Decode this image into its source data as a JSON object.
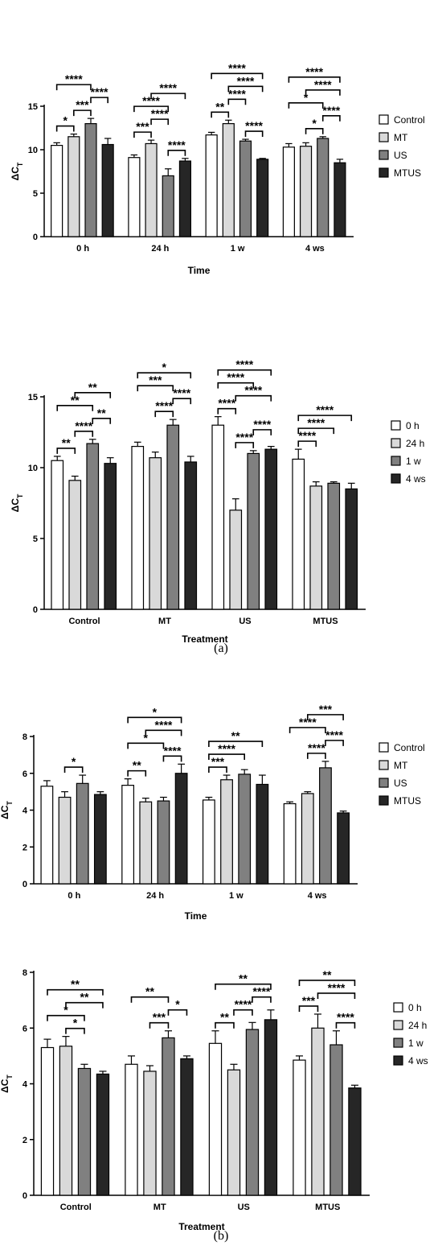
{
  "panel_labels": [
    "(a)",
    "(b)"
  ],
  "colors": {
    "s0": "#ffffff",
    "s1": "#d9d9d9",
    "s2": "#808080",
    "s3": "#262626"
  },
  "chart_data": [
    {
      "type": "bar",
      "categories": [
        "0 h",
        "24 h",
        "1 w",
        "4 ws"
      ],
      "xlabel": "Time",
      "ylabel": "ΔCT",
      "ylim": [
        0,
        15
      ],
      "yticks": [
        0,
        5,
        10,
        15
      ],
      "legend_position": "right",
      "series": [
        {
          "name": "Control",
          "values": [
            10.5,
            9.1,
            11.7,
            10.3
          ],
          "errors": [
            0.3,
            0.3,
            0.3,
            0.4
          ]
        },
        {
          "name": "MT",
          "values": [
            11.5,
            10.7,
            13.0,
            10.4
          ],
          "errors": [
            0.3,
            0.4,
            0.4,
            0.4
          ]
        },
        {
          "name": "US",
          "values": [
            13.0,
            7.0,
            11.0,
            11.3
          ],
          "errors": [
            0.6,
            0.8,
            0.2,
            0.2
          ]
        },
        {
          "name": "MTUS",
          "values": [
            10.6,
            8.7,
            8.9,
            8.5
          ],
          "errors": [
            0.7,
            0.3,
            0.1,
            0.4
          ]
        }
      ],
      "comparisons": [
        {
          "category": "0 h",
          "from": 0,
          "to": 1,
          "label": "*"
        },
        {
          "category": "0 h",
          "from": 0,
          "to": 2,
          "label": "****"
        },
        {
          "category": "0 h",
          "from": 1,
          "to": 2,
          "label": "***"
        },
        {
          "category": "0 h",
          "from": 2,
          "to": 3,
          "label": "****"
        },
        {
          "category": "24 h",
          "from": 0,
          "to": 1,
          "label": "***"
        },
        {
          "category": "24 h",
          "from": 0,
          "to": 2,
          "label": "****"
        },
        {
          "category": "24 h",
          "from": 1,
          "to": 2,
          "label": "****"
        },
        {
          "category": "24 h",
          "from": 1,
          "to": 3,
          "label": "****"
        },
        {
          "category": "24 h",
          "from": 2,
          "to": 3,
          "label": "****"
        },
        {
          "category": "1 w",
          "from": 0,
          "to": 1,
          "label": "**"
        },
        {
          "category": "1 w",
          "from": 0,
          "to": 3,
          "label": "****"
        },
        {
          "category": "1 w",
          "from": 1,
          "to": 2,
          "label": "****"
        },
        {
          "category": "1 w",
          "from": 1,
          "to": 3,
          "label": "****"
        },
        {
          "category": "1 w",
          "from": 2,
          "to": 3,
          "label": "****"
        },
        {
          "category": "4 ws",
          "from": 0,
          "to": 2,
          "label": "*"
        },
        {
          "category": "4 ws",
          "from": 0,
          "to": 3,
          "label": "****"
        },
        {
          "category": "4 ws",
          "from": 1,
          "to": 2,
          "label": "*"
        },
        {
          "category": "4 ws",
          "from": 1,
          "to": 3,
          "label": "****"
        },
        {
          "category": "4 ws",
          "from": 2,
          "to": 3,
          "label": "****"
        }
      ]
    },
    {
      "type": "bar",
      "categories": [
        "Control",
        "MT",
        "US",
        "MTUS"
      ],
      "xlabel": "Treatment",
      "ylabel": "ΔCT",
      "ylim": [
        0,
        15
      ],
      "yticks": [
        0,
        5,
        10,
        15
      ],
      "legend_position": "right",
      "series": [
        {
          "name": "0 h",
          "values": [
            10.5,
            11.5,
            13.0,
            10.6
          ],
          "errors": [
            0.3,
            0.3,
            0.6,
            0.7
          ]
        },
        {
          "name": "24 h",
          "values": [
            9.1,
            10.7,
            7.0,
            8.7
          ],
          "errors": [
            0.3,
            0.4,
            0.8,
            0.3
          ]
        },
        {
          "name": "1 w",
          "values": [
            11.7,
            13.0,
            11.0,
            8.9
          ],
          "errors": [
            0.3,
            0.4,
            0.2,
            0.1
          ]
        },
        {
          "name": "4 ws",
          "values": [
            10.3,
            10.4,
            11.3,
            8.5
          ],
          "errors": [
            0.4,
            0.4,
            0.2,
            0.4
          ]
        }
      ],
      "comparisons": [
        {
          "category": "Control",
          "from": 0,
          "to": 1,
          "label": "**"
        },
        {
          "category": "Control",
          "from": 0,
          "to": 2,
          "label": "**"
        },
        {
          "category": "Control",
          "from": 1,
          "to": 2,
          "label": "****"
        },
        {
          "category": "Control",
          "from": 1,
          "to": 3,
          "label": "**"
        },
        {
          "category": "Control",
          "from": 2,
          "to": 3,
          "label": "**"
        },
        {
          "category": "MT",
          "from": 0,
          "to": 2,
          "label": "***"
        },
        {
          "category": "MT",
          "from": 0,
          "to": 3,
          "label": "*"
        },
        {
          "category": "MT",
          "from": 1,
          "to": 2,
          "label": "****"
        },
        {
          "category": "MT",
          "from": 2,
          "to": 3,
          "label": "****"
        },
        {
          "category": "US",
          "from": 0,
          "to": 1,
          "label": "****"
        },
        {
          "category": "US",
          "from": 0,
          "to": 2,
          "label": "****"
        },
        {
          "category": "US",
          "from": 0,
          "to": 3,
          "label": "****"
        },
        {
          "category": "US",
          "from": 1,
          "to": 2,
          "label": "****"
        },
        {
          "category": "US",
          "from": 1,
          "to": 3,
          "label": "****"
        },
        {
          "category": "US",
          "from": 2,
          "to": 3,
          "label": "****"
        },
        {
          "category": "MTUS",
          "from": 0,
          "to": 1,
          "label": "****"
        },
        {
          "category": "MTUS",
          "from": 0,
          "to": 2,
          "label": "****"
        },
        {
          "category": "MTUS",
          "from": 0,
          "to": 3,
          "label": "****"
        }
      ]
    },
    {
      "type": "bar",
      "categories": [
        "0 h",
        "24 h",
        "1 w",
        "4 ws"
      ],
      "xlabel": "Time",
      "ylabel": "ΔCT",
      "ylim": [
        0,
        8
      ],
      "yticks": [
        0,
        2,
        4,
        6,
        8
      ],
      "legend_position": "right",
      "series": [
        {
          "name": "Control",
          "values": [
            5.3,
            5.35,
            4.55,
            4.35
          ],
          "errors": [
            0.3,
            0.35,
            0.15,
            0.1
          ]
        },
        {
          "name": "MT",
          "values": [
            4.7,
            4.45,
            5.65,
            4.9
          ],
          "errors": [
            0.3,
            0.2,
            0.25,
            0.1
          ]
        },
        {
          "name": "US",
          "values": [
            5.45,
            4.5,
            5.95,
            6.3
          ],
          "errors": [
            0.45,
            0.2,
            0.25,
            0.35
          ]
        },
        {
          "name": "MTUS",
          "values": [
            4.85,
            6.0,
            5.4,
            3.85
          ],
          "errors": [
            0.15,
            0.5,
            0.5,
            0.1
          ]
        }
      ],
      "comparisons": [
        {
          "category": "0 h",
          "from": 1,
          "to": 2,
          "label": "*"
        },
        {
          "category": "24 h",
          "from": 0,
          "to": 1,
          "label": "**"
        },
        {
          "category": "24 h",
          "from": 0,
          "to": 2,
          "label": "*"
        },
        {
          "category": "24 h",
          "from": 0,
          "to": 3,
          "label": "*"
        },
        {
          "category": "24 h",
          "from": 1,
          "to": 3,
          "label": "****"
        },
        {
          "category": "24 h",
          "from": 2,
          "to": 3,
          "label": "****"
        },
        {
          "category": "1 w",
          "from": 0,
          "to": 1,
          "label": "***"
        },
        {
          "category": "1 w",
          "from": 0,
          "to": 2,
          "label": "****"
        },
        {
          "category": "1 w",
          "from": 0,
          "to": 3,
          "label": "**"
        },
        {
          "category": "4 ws",
          "from": 0,
          "to": 2,
          "label": "****"
        },
        {
          "category": "4 ws",
          "from": 1,
          "to": 2,
          "label": "****"
        },
        {
          "category": "4 ws",
          "from": 1,
          "to": 3,
          "label": "***"
        },
        {
          "category": "4 ws",
          "from": 2,
          "to": 3,
          "label": "****"
        }
      ]
    },
    {
      "type": "bar",
      "categories": [
        "Control",
        "MT",
        "US",
        "MTUS"
      ],
      "xlabel": "Treatment",
      "ylabel": "ΔCT",
      "ylim": [
        0,
        8
      ],
      "yticks": [
        0,
        2,
        4,
        6,
        8
      ],
      "legend_position": "right",
      "series": [
        {
          "name": "0 h",
          "values": [
            5.3,
            4.7,
            5.45,
            4.85
          ],
          "errors": [
            0.3,
            0.3,
            0.45,
            0.15
          ]
        },
        {
          "name": "24 h",
          "values": [
            5.35,
            4.45,
            4.5,
            6.0
          ],
          "errors": [
            0.35,
            0.2,
            0.2,
            0.5
          ]
        },
        {
          "name": "1 w",
          "values": [
            4.55,
            5.65,
            5.95,
            5.4
          ],
          "errors": [
            0.15,
            0.25,
            0.25,
            0.5
          ]
        },
        {
          "name": "4 ws",
          "values": [
            4.35,
            4.9,
            6.3,
            3.85
          ],
          "errors": [
            0.1,
            0.1,
            0.35,
            0.1
          ]
        }
      ],
      "comparisons": [
        {
          "category": "Control",
          "from": 0,
          "to": 2,
          "label": "*"
        },
        {
          "category": "Control",
          "from": 0,
          "to": 3,
          "label": "**"
        },
        {
          "category": "Control",
          "from": 1,
          "to": 2,
          "label": "*"
        },
        {
          "category": "Control",
          "from": 1,
          "to": 3,
          "label": "**"
        },
        {
          "category": "MT",
          "from": 0,
          "to": 2,
          "label": "**"
        },
        {
          "category": "MT",
          "from": 1,
          "to": 2,
          "label": "***"
        },
        {
          "category": "MT",
          "from": 2,
          "to": 3,
          "label": "*"
        },
        {
          "category": "US",
          "from": 0,
          "to": 1,
          "label": "**"
        },
        {
          "category": "US",
          "from": 0,
          "to": 3,
          "label": "**"
        },
        {
          "category": "US",
          "from": 1,
          "to": 2,
          "label": "****"
        },
        {
          "category": "US",
          "from": 2,
          "to": 3,
          "label": "****"
        },
        {
          "category": "MTUS",
          "from": 0,
          "to": 1,
          "label": "***"
        },
        {
          "category": "MTUS",
          "from": 0,
          "to": 3,
          "label": "**"
        },
        {
          "category": "MTUS",
          "from": 1,
          "to": 3,
          "label": "****"
        },
        {
          "category": "MTUS",
          "from": 2,
          "to": 3,
          "label": "****"
        }
      ]
    }
  ]
}
